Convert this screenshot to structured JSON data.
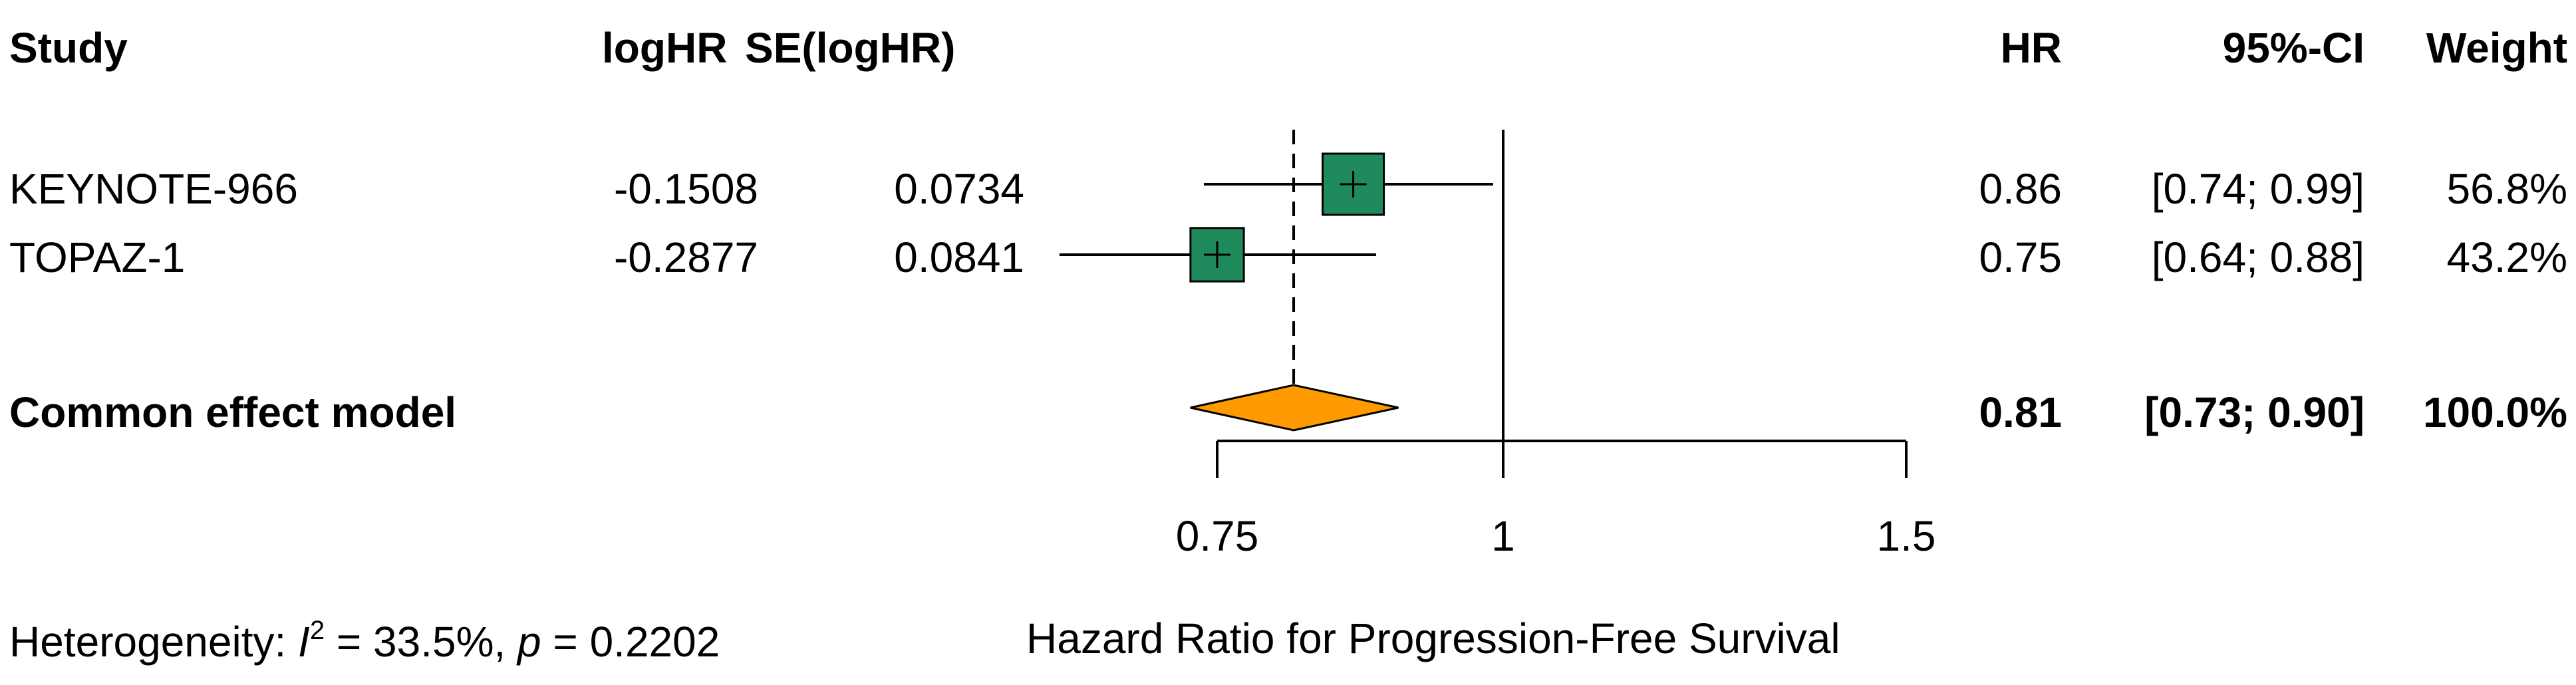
{
  "chart_data": {
    "type": "forest",
    "headers": {
      "study": "Study",
      "loghr": "logHR",
      "se": "SE(logHR)",
      "hr": "HR",
      "ci": "95%-CI",
      "weight": "Weight"
    },
    "studies": [
      {
        "name": "KEYNOTE-966",
        "loghr": "-0.1508",
        "se": "0.0734",
        "hr_text": "0.86",
        "ci_text": "[0.74; 0.99]",
        "weight_text": "56.8%",
        "hr": 0.86,
        "lower": 0.74,
        "upper": 0.99,
        "weight": 56.8
      },
      {
        "name": "TOPAZ-1",
        "loghr": "-0.2877",
        "se": "0.0841",
        "hr_text": "0.75",
        "ci_text": "[0.64; 0.88]",
        "weight_text": "43.2%",
        "hr": 0.75,
        "lower": 0.64,
        "upper": 0.88,
        "weight": 43.2
      }
    ],
    "pooled": {
      "name": "Common effect model",
      "hr_text": "0.81",
      "ci_text": "[0.73; 0.90]",
      "weight_text": "100.0%",
      "hr": 0.81,
      "lower": 0.73,
      "upper": 0.9
    },
    "x_axis": {
      "scale": "log",
      "range": [
        0.75,
        1.5
      ],
      "ticks": [
        0.75,
        1,
        1.5
      ],
      "tick_labels": [
        "0.75",
        "1",
        "1.5"
      ],
      "reference": 1,
      "label": "Hazard Ratio for Progression-Free Survival"
    },
    "heterogeneity": {
      "prefix": "Heterogeneity: ",
      "i_symbol": "I",
      "i_sup": "2",
      "i2_text": " = 33.5%, ",
      "p_symbol": "p",
      "p_text": " = 0.2202"
    },
    "colors": {
      "study_box": "#1f8a5c",
      "pooled_diamond": "#ff9a00",
      "line": "#000000"
    }
  }
}
